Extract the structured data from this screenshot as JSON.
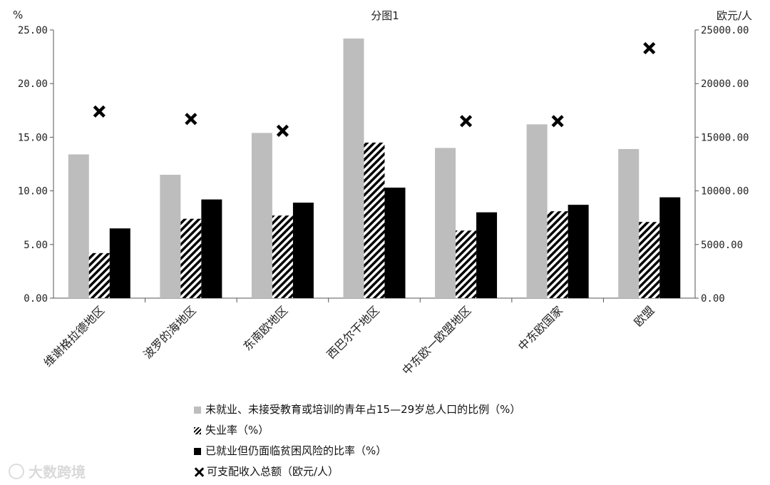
{
  "chart_data": {
    "type": "bar",
    "title": "分图1",
    "left_axis_unit": "%",
    "right_axis_unit": "欧元/人",
    "categories": [
      "维谢格拉德地区",
      "波罗的海地区",
      "东南欧地区",
      "西巴尔干地区",
      "中东欧一欧盟地区",
      "中东欧国家",
      "欧盟"
    ],
    "ylim_left": [
      0,
      25
    ],
    "ylim_right": [
      0,
      25000
    ],
    "yticks_left": [
      "0.00",
      "5.00",
      "10.00",
      "15.00",
      "20.00",
      "25.00"
    ],
    "yticks_right": [
      "0.00",
      "5000.00",
      "10000.00",
      "15000.00",
      "20000.00",
      "25000.00"
    ],
    "series": [
      {
        "name": "未就业、未接受教育或培训的青年占15—29岁总人口的比例（%）",
        "axis": "left",
        "style": "bar-gray",
        "values": [
          13.4,
          11.5,
          15.4,
          24.2,
          14.0,
          16.2,
          13.9
        ]
      },
      {
        "name": "失业率（%）",
        "axis": "left",
        "style": "bar-hatch",
        "values": [
          4.2,
          7.4,
          7.7,
          14.5,
          6.3,
          8.1,
          7.1
        ]
      },
      {
        "name": "已就业但仍面临贫困风险的比率（%）",
        "axis": "left",
        "style": "bar-black",
        "values": [
          6.5,
          9.2,
          8.9,
          10.3,
          8.0,
          8.7,
          9.4
        ]
      },
      {
        "name": "可支配收入总额（欧元/人）",
        "axis": "right",
        "style": "marker-x",
        "values": [
          17400,
          16700,
          15600,
          0,
          16500,
          16500,
          23300
        ]
      }
    ],
    "colors": {
      "gray": "#bdbdbd",
      "black": "#000000"
    },
    "grid": false,
    "legend": "bottom"
  },
  "watermark": "大数跨境"
}
